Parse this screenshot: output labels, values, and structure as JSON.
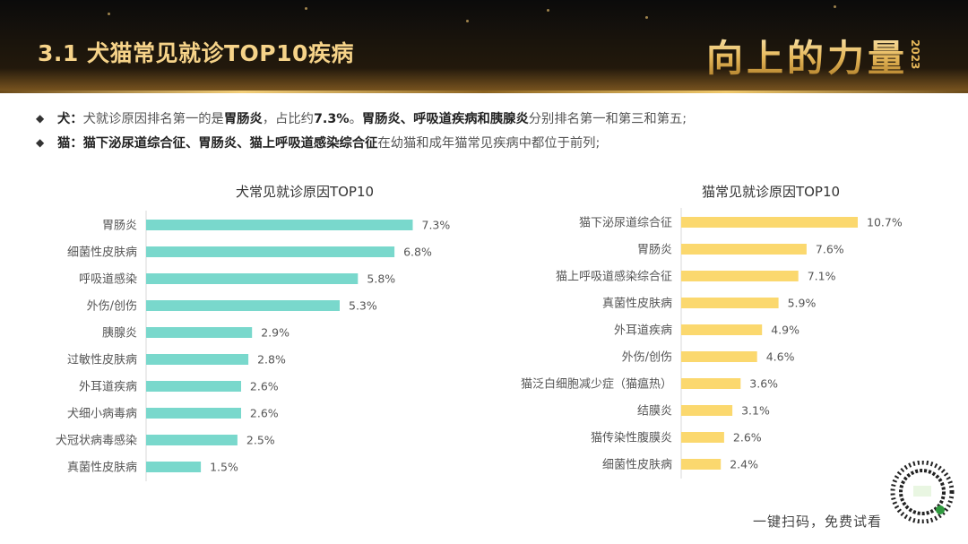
{
  "header": {
    "title": "3.1  犬猫常见就诊TOP10疾病",
    "logo_text": "向上的力量",
    "logo_year": "2023"
  },
  "bullets": [
    {
      "segments": [
        {
          "text": "犬：",
          "bold": true
        },
        {
          "text": "犬就诊原因排名第一的是",
          "bold": false
        },
        {
          "text": "胃肠炎",
          "bold": true
        },
        {
          "text": "，占比约",
          "bold": false
        },
        {
          "text": "7.3%",
          "bold": true
        },
        {
          "text": "。",
          "bold": false
        },
        {
          "text": "胃肠炎、呼吸道疾病和胰腺炎",
          "bold": true
        },
        {
          "text": "分别排名第一和第三和第五;",
          "bold": false
        }
      ]
    },
    {
      "segments": [
        {
          "text": "猫：",
          "bold": true
        },
        {
          "text": "猫下泌尿道综合征、胃肠炎、猫上呼吸道感染综合征",
          "bold": true
        },
        {
          "text": "在幼猫和成年猫常见疾病中都位于前列;",
          "bold": false
        }
      ]
    }
  ],
  "chart_data": [
    {
      "type": "bar",
      "orientation": "horizontal",
      "title": "犬常见就诊原因TOP10",
      "categories": [
        "胃肠炎",
        "细菌性皮肤病",
        "呼吸道感染",
        "外伤/创伤",
        "胰腺炎",
        "过敏性皮肤病",
        "外耳道疾病",
        "犬细小病毒病",
        "犬冠状病毒感染",
        "真菌性皮肤病"
      ],
      "values": [
        7.3,
        6.8,
        5.8,
        5.3,
        2.9,
        2.8,
        2.6,
        2.6,
        2.5,
        1.5
      ],
      "value_labels": [
        "7.3%",
        "6.8%",
        "5.8%",
        "5.3%",
        "2.9%",
        "2.8%",
        "2.6%",
        "2.6%",
        "2.5%",
        "1.5%"
      ],
      "xlim": [
        0,
        8
      ],
      "color": "#79d8cc",
      "grid": false,
      "legend": "none"
    },
    {
      "type": "bar",
      "orientation": "horizontal",
      "title": "猫常见就诊原因TOP10",
      "categories": [
        "猫下泌尿道综合征",
        "胃肠炎",
        "猫上呼吸道感染综合征",
        "真菌性皮肤病",
        "外耳道疾病",
        "外伤/创伤",
        "猫泛白细胞减少症（猫瘟热）",
        "结膜炎",
        "猫传染性腹膜炎",
        "细菌性皮肤病"
      ],
      "values": [
        10.7,
        7.6,
        7.1,
        5.9,
        4.9,
        4.6,
        3.6,
        3.1,
        2.6,
        2.4
      ],
      "value_labels": [
        "10.7%",
        "7.6%",
        "7.1%",
        "5.9%",
        "4.9%",
        "4.6%",
        "3.6%",
        "3.1%",
        "2.6%",
        "2.4%"
      ],
      "xlim": [
        0,
        10.7
      ],
      "color": "#fbd86e",
      "grid": false,
      "legend": "none"
    }
  ],
  "footer": {
    "qr_note": "一键扫码，免费试看",
    "qr_icon": "qr-code-icon"
  }
}
